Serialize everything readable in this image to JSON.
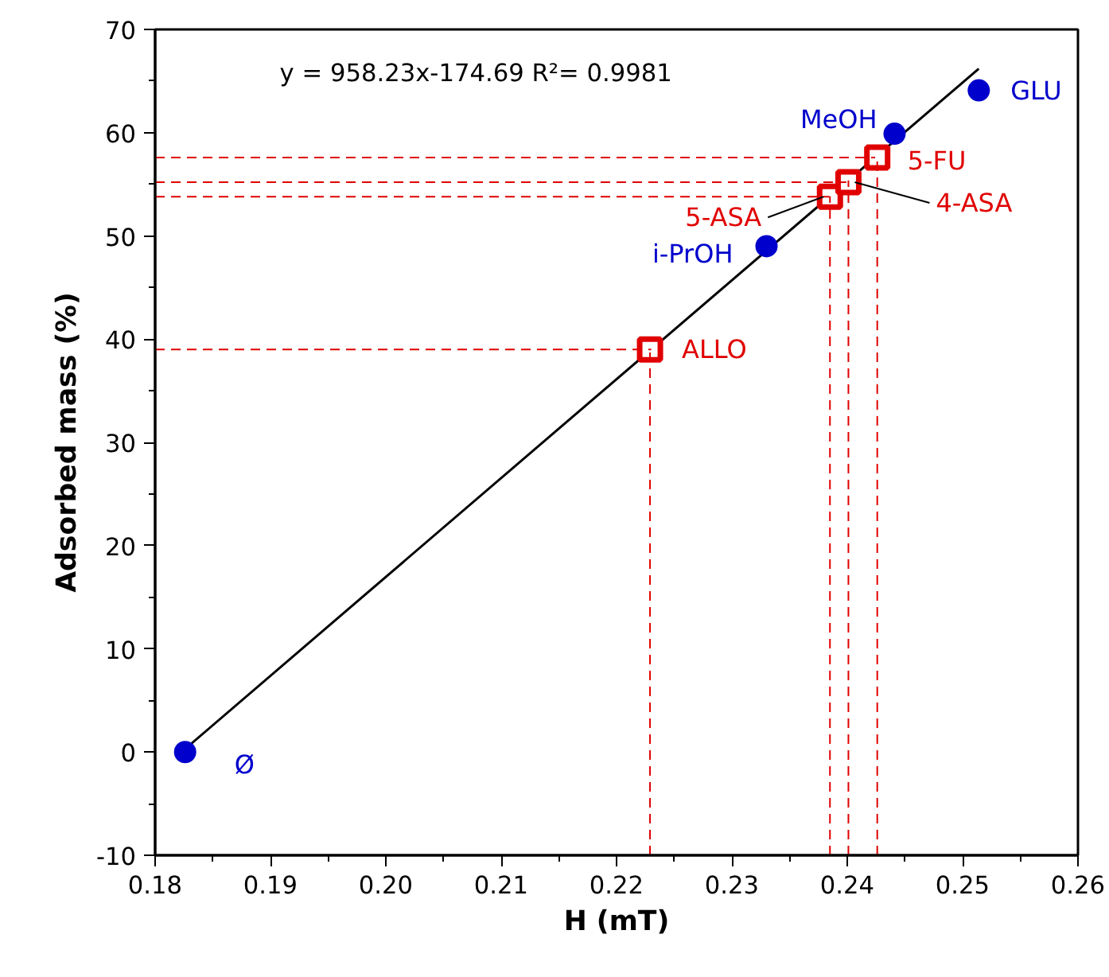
{
  "chart_data": {
    "type": "scatter",
    "xlabel": "H (mT)",
    "ylabel": "Adsorbed mass (%)",
    "xlim": [
      0.18,
      0.26
    ],
    "ylim": [
      -10,
      70
    ],
    "xticks": [
      0.18,
      0.19,
      {
        "value": 0.2,
        "label": "0.20"
      },
      0.21,
      0.22,
      0.23,
      0.24,
      0.25,
      0.26,
      {
        "value": 0.185,
        "label": null
      },
      {
        "value": 0.195,
        "label": null
      },
      {
        "value": 0.205,
        "label": null
      },
      {
        "value": 0.215,
        "label": null
      },
      {
        "value": 0.225,
        "label": null
      },
      {
        "value": 0.235,
        "label": null
      },
      {
        "value": 0.245,
        "label": null
      },
      {
        "value": 0.255,
        "label": null
      }
    ],
    "yticks": [
      -10,
      0,
      10,
      20,
      30,
      40,
      50,
      60,
      70,
      {
        "value": -5,
        "label": null
      },
      {
        "value": 5,
        "label": null
      },
      {
        "value": 15,
        "label": null
      },
      {
        "value": 25,
        "label": null
      },
      {
        "value": 35,
        "label": null
      },
      {
        "value": 45,
        "label": null
      },
      {
        "value": 55,
        "label": null
      },
      {
        "value": 65,
        "label": null
      }
    ],
    "grid": false,
    "series": [
      {
        "type": "line",
        "color": "#000000",
        "x": [
          0.1826,
          0.2514
        ],
        "values": [
          0.3,
          66.2
        ],
        "line_style": "solid"
      },
      {
        "color": "#0000cc",
        "x": [
          0.1826,
          0.2514,
          0.2441,
          0.233
        ],
        "values": [
          0,
          64.1,
          59.9,
          49.0
        ],
        "marker": "circle"
      },
      {
        "color": "#e00000",
        "x": [
          0.2229,
          0.2385,
          0.2401,
          0.2426
        ],
        "values": [
          39.0,
          53.8,
          55.2,
          57.6
        ],
        "marker": "square"
      }
    ],
    "ref_lines": [
      {
        "axis": "y",
        "value": 39.0,
        "color": "#e00000",
        "line_style": "dashed"
      },
      {
        "axis": "y",
        "value": 53.8,
        "color": "#e00000",
        "line_style": "dashed"
      },
      {
        "axis": "y",
        "value": 55.2,
        "color": "#e00000",
        "line_style": "dashed"
      },
      {
        "axis": "y",
        "value": 57.6,
        "color": "#e00000",
        "line_style": "dashed"
      },
      {
        "axis": "x",
        "value": 0.2229,
        "color": "#e00000",
        "line_style": "dashed"
      },
      {
        "axis": "x",
        "value": 0.2385,
        "color": "#e00000",
        "line_style": "dashed"
      },
      {
        "axis": "x",
        "value": 0.2401,
        "color": "#e00000",
        "line_style": "dashed"
      },
      {
        "axis": "x",
        "value": 0.2426,
        "color": "#e00000",
        "line_style": "dashed"
      }
    ],
    "annotations": [
      "y = 958.23x-174.69   R²= 0.9981",
      {
        "text": "Ø",
        "x": 0.1826,
        "y": 0
      },
      {
        "text": "GLU",
        "x": 0.2514,
        "y": 64.1
      },
      {
        "text": "MeOH",
        "x": 0.2441,
        "y": 59.9
      },
      {
        "text": "i-PrOH",
        "x": 0.233,
        "y": 49.0
      },
      {
        "text": "ALLO",
        "x": 0.2229,
        "y": 39.0
      },
      {
        "text": "5-ASA",
        "x": 0.2385,
        "y": 53.8
      },
      {
        "text": "4-ASA",
        "x": 0.2401,
        "y": 55.2
      },
      {
        "text": "5-FU",
        "x": 0.2426,
        "y": 57.6
      }
    ]
  }
}
